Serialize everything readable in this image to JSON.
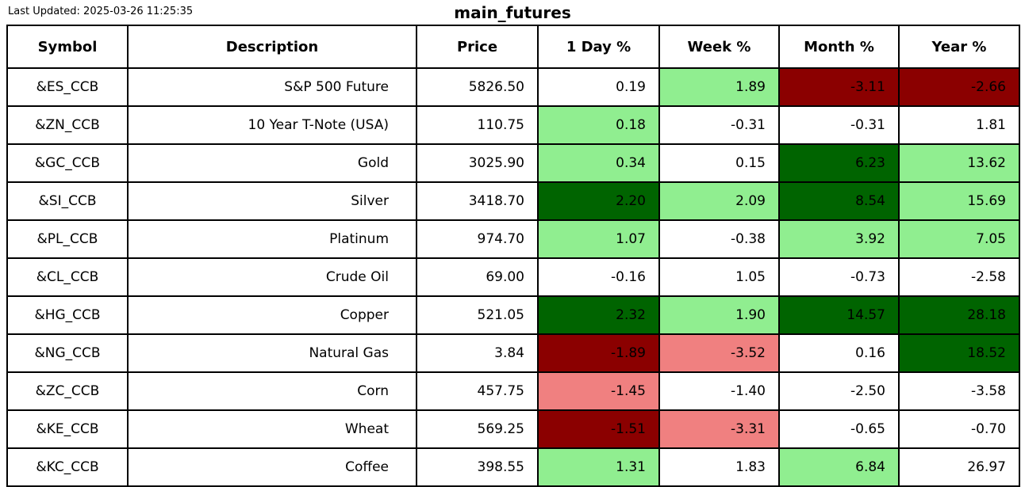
{
  "chart_data": {
    "type": "table",
    "title": "main_futures",
    "last_updated": "Last Updated: 2025-03-26 11:25:35",
    "columns": [
      "Symbol",
      "Description",
      "Price",
      "1 Day %",
      "Week %",
      "Month %",
      "Year %"
    ],
    "cell_colors": {
      "white": "#ffffff",
      "lightgreen": "#90EE90",
      "darkgreen": "#006400",
      "lightcoral": "#F08080",
      "darkred": "#8B0000"
    },
    "rows": [
      {
        "symbol": "&ES_CCB",
        "description": "S&P 500 Future",
        "price": "5826.50",
        "pct": [
          {
            "value": "0.19",
            "bg": "white"
          },
          {
            "value": "1.89",
            "bg": "lightgreen"
          },
          {
            "value": "-3.11",
            "bg": "darkred"
          },
          {
            "value": "-2.66",
            "bg": "darkred"
          }
        ]
      },
      {
        "symbol": "&ZN_CCB",
        "description": "10 Year T-Note (USA)",
        "price": "110.75",
        "pct": [
          {
            "value": "0.18",
            "bg": "lightgreen"
          },
          {
            "value": "-0.31",
            "bg": "white"
          },
          {
            "value": "-0.31",
            "bg": "white"
          },
          {
            "value": "1.81",
            "bg": "white"
          }
        ]
      },
      {
        "symbol": "&GC_CCB",
        "description": "Gold",
        "price": "3025.90",
        "pct": [
          {
            "value": "0.34",
            "bg": "lightgreen"
          },
          {
            "value": "0.15",
            "bg": "white"
          },
          {
            "value": "6.23",
            "bg": "darkgreen"
          },
          {
            "value": "13.62",
            "bg": "lightgreen"
          }
        ]
      },
      {
        "symbol": "&SI_CCB",
        "description": "Silver",
        "price": "3418.70",
        "pct": [
          {
            "value": "2.20",
            "bg": "darkgreen"
          },
          {
            "value": "2.09",
            "bg": "lightgreen"
          },
          {
            "value": "8.54",
            "bg": "darkgreen"
          },
          {
            "value": "15.69",
            "bg": "lightgreen"
          }
        ]
      },
      {
        "symbol": "&PL_CCB",
        "description": "Platinum",
        "price": "974.70",
        "pct": [
          {
            "value": "1.07",
            "bg": "lightgreen"
          },
          {
            "value": "-0.38",
            "bg": "white"
          },
          {
            "value": "3.92",
            "bg": "lightgreen"
          },
          {
            "value": "7.05",
            "bg": "lightgreen"
          }
        ]
      },
      {
        "symbol": "&CL_CCB",
        "description": "Crude Oil",
        "price": "69.00",
        "pct": [
          {
            "value": "-0.16",
            "bg": "white"
          },
          {
            "value": "1.05",
            "bg": "white"
          },
          {
            "value": "-0.73",
            "bg": "white"
          },
          {
            "value": "-2.58",
            "bg": "white"
          }
        ]
      },
      {
        "symbol": "&HG_CCB",
        "description": "Copper",
        "price": "521.05",
        "pct": [
          {
            "value": "2.32",
            "bg": "darkgreen"
          },
          {
            "value": "1.90",
            "bg": "lightgreen"
          },
          {
            "value": "14.57",
            "bg": "darkgreen"
          },
          {
            "value": "28.18",
            "bg": "darkgreen"
          }
        ]
      },
      {
        "symbol": "&NG_CCB",
        "description": "Natural Gas",
        "price": "3.84",
        "pct": [
          {
            "value": "-1.89",
            "bg": "darkred"
          },
          {
            "value": "-3.52",
            "bg": "lightcoral"
          },
          {
            "value": "0.16",
            "bg": "white"
          },
          {
            "value": "18.52",
            "bg": "darkgreen"
          }
        ]
      },
      {
        "symbol": "&ZC_CCB",
        "description": "Corn",
        "price": "457.75",
        "pct": [
          {
            "value": "-1.45",
            "bg": "lightcoral"
          },
          {
            "value": "-1.40",
            "bg": "white"
          },
          {
            "value": "-2.50",
            "bg": "white"
          },
          {
            "value": "-3.58",
            "bg": "white"
          }
        ]
      },
      {
        "symbol": "&KE_CCB",
        "description": "Wheat",
        "price": "569.25",
        "pct": [
          {
            "value": "-1.51",
            "bg": "darkred"
          },
          {
            "value": "-3.31",
            "bg": "lightcoral"
          },
          {
            "value": "-0.65",
            "bg": "white"
          },
          {
            "value": "-0.70",
            "bg": "white"
          }
        ]
      },
      {
        "symbol": "&KC_CCB",
        "description": "Coffee",
        "price": "398.55",
        "pct": [
          {
            "value": "1.31",
            "bg": "lightgreen"
          },
          {
            "value": "1.83",
            "bg": "white"
          },
          {
            "value": "6.84",
            "bg": "lightgreen"
          },
          {
            "value": "26.97",
            "bg": "white"
          }
        ]
      }
    ]
  }
}
